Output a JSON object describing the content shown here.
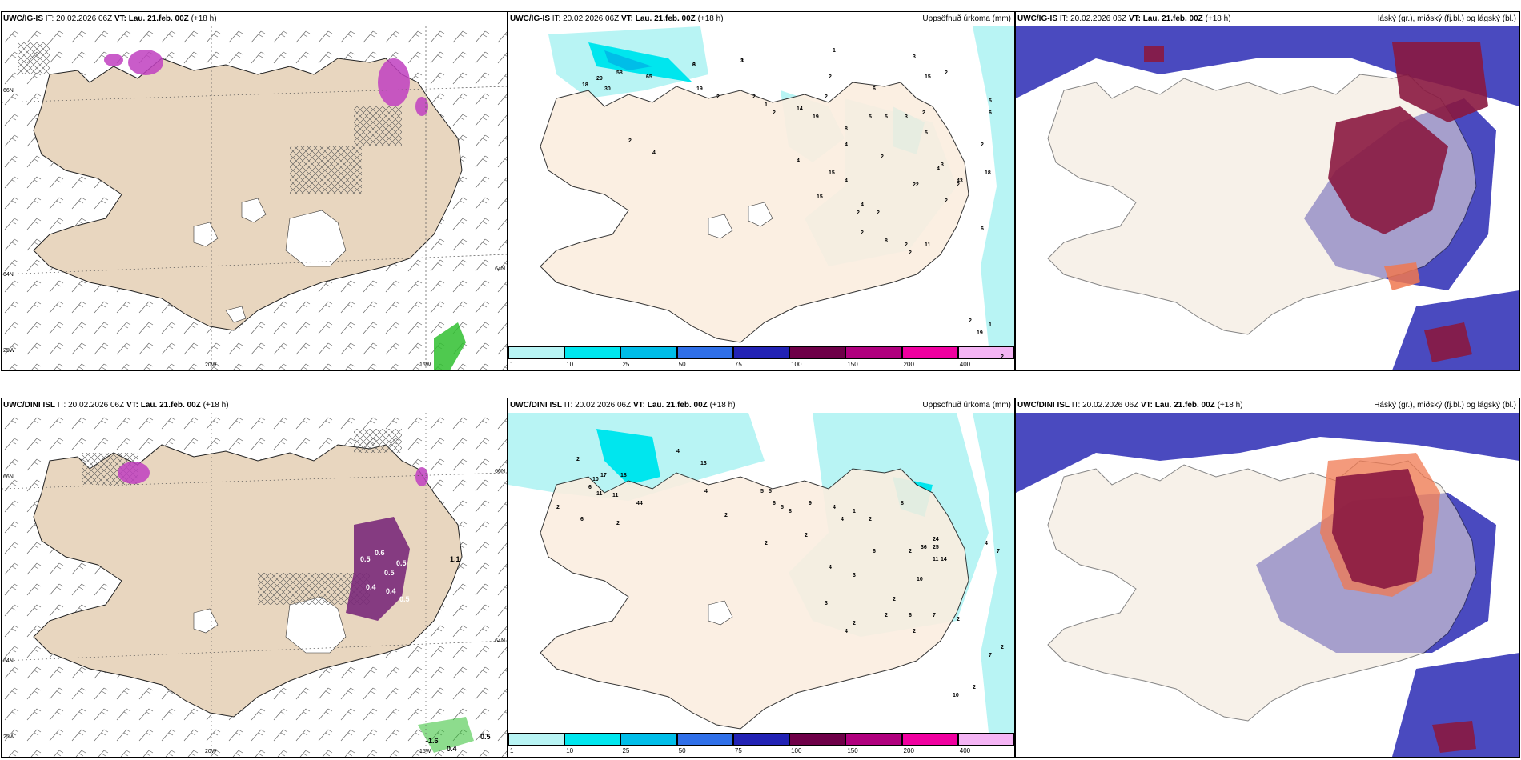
{
  "rows": [
    {
      "model": "UWC/IG-IS",
      "it_label": "IT:",
      "it_value": "20.02.2026 06Z",
      "vt_label": "VT:",
      "vt_value": "Lau. 21.feb. 00Z",
      "lead": "(+18 h)",
      "panel1": {
        "lat_labels": [
          "66N",
          "64N",
          "25W"
        ],
        "lon_labels": [
          "20W",
          "15W"
        ],
        "right_labels": [
          "64N"
        ]
      },
      "panel2": {
        "title": "Uppsöfnuð úrkoma (mm)",
        "values": [
          "3",
          "1",
          "1",
          "18",
          "29",
          "58",
          "30",
          "65",
          "19",
          "2",
          "2",
          "1",
          "2",
          "2",
          "6",
          "3",
          "15",
          "2",
          "2",
          "14",
          "19",
          "8",
          "4",
          "5",
          "4",
          "5",
          "3",
          "2",
          "5",
          "2",
          "4",
          "15",
          "4",
          "4",
          "2",
          "2",
          "2",
          "3",
          "43",
          "4",
          "2",
          "2",
          "18",
          "22",
          "2",
          "15",
          "2",
          "8",
          "2",
          "11",
          "2",
          "5",
          "6",
          "6",
          "19",
          "2",
          "2",
          "1",
          "6",
          "3"
        ]
      },
      "panel3": {
        "title": "Háský (gr.), miðský (fj.bl.) og lágský (bl.)"
      }
    },
    {
      "model": "UWC/DINI ISL",
      "it_label": "IT:",
      "it_value": "20.02.2026 06Z",
      "vt_label": "VT:",
      "vt_value": "Lau. 21.feb. 00Z",
      "lead": "(+18 h)",
      "panel1": {
        "lat_labels": [
          "66N",
          "64N",
          "25W"
        ],
        "lon_labels": [
          "20W",
          "15W"
        ],
        "right_labels": [
          "66N",
          "64N"
        ],
        "values": [
          "0.5",
          "0.6",
          "0.5",
          "0.5",
          "0.4",
          "0.4",
          "0.5",
          "1.1",
          "-1.6",
          "0.4",
          "0.5"
        ]
      },
      "panel2": {
        "title": "Uppsöfnuð úrkoma (mm)",
        "values": [
          "4",
          "2",
          "17",
          "18",
          "6",
          "10",
          "11",
          "11",
          "44",
          "13",
          "4",
          "2",
          "2",
          "6",
          "2",
          "5",
          "5",
          "6",
          "5",
          "8",
          "9",
          "4",
          "4",
          "2",
          "1",
          "8",
          "2",
          "6",
          "10",
          "36",
          "24",
          "25",
          "14",
          "11",
          "4",
          "7",
          "2",
          "2",
          "4",
          "3",
          "2",
          "6",
          "7",
          "2",
          "2",
          "2",
          "10",
          "2",
          "7",
          "2",
          "3",
          "2",
          "4"
        ]
      },
      "panel3": {
        "title": "Háský (gr.), miðský (fj.bl.) og lágský (bl.)"
      }
    }
  ],
  "colorbar": {
    "ticks": [
      "1",
      "10",
      "25",
      "50",
      "75",
      "100",
      "150",
      "200",
      "400"
    ],
    "colors": [
      "#b8f4f4",
      "#00e6ee",
      "#00bde8",
      "#2f6fe8",
      "#2222b4",
      "#6e0048",
      "#b0007e",
      "#f000a0",
      "#f4b4f4"
    ]
  },
  "colors": {
    "land": "#f2e6d8",
    "land_row1_mid": "#fbeee0",
    "land_row1_left": "#e8d6bf",
    "precip_light": "#b8f4f4",
    "precip_mid": "#00e6ee",
    "low_cloud": "#3636b8",
    "high_cloud": "#8a1840",
    "snow_purple": "#c040c0"
  }
}
